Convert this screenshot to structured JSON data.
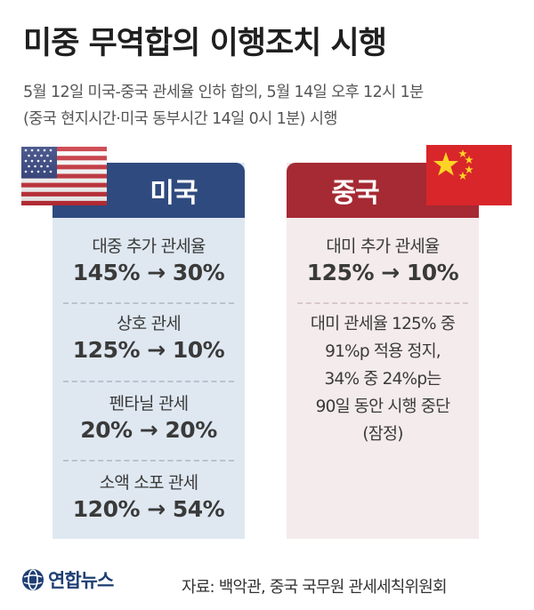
{
  "title": "미중 무역합의 이행조치 시행",
  "subtitle_line1": "5월 12일 미국-중국 관세율 인하 합의, 5월 14일 오후 12시 1분",
  "subtitle_line2": "(중국 현지시간·미국 동부시간 14일 0시 1분) 시행",
  "us": {
    "header": "미국",
    "items": [
      {
        "label": "대중 추가 관세율",
        "value": "145% → 30%"
      },
      {
        "label": "상호 관세",
        "value": "125% → 10%"
      },
      {
        "label": "펜타닐 관세",
        "value": "20% → 20%"
      },
      {
        "label": "소액 소포 관세",
        "value": "120% → 54%"
      }
    ]
  },
  "cn": {
    "header": "중국",
    "items": [
      {
        "label": "대미 추가 관세율",
        "value": "125% → 10%"
      }
    ],
    "note_lines": [
      "대미 관세율 125% 중",
      "91%p 적용 정지,",
      "34% 중 24%p는",
      "90일 동안 시행 중단",
      "(잠정)"
    ]
  },
  "logo": "연합뉴스",
  "source": "자료: 백악관, 중국 국무원 관세세칙위원회",
  "colors": {
    "us_header": "#2f4a7e",
    "cn_header": "#a52a33",
    "us_panel": "#dfe8f1",
    "cn_panel": "#f4ebec"
  }
}
